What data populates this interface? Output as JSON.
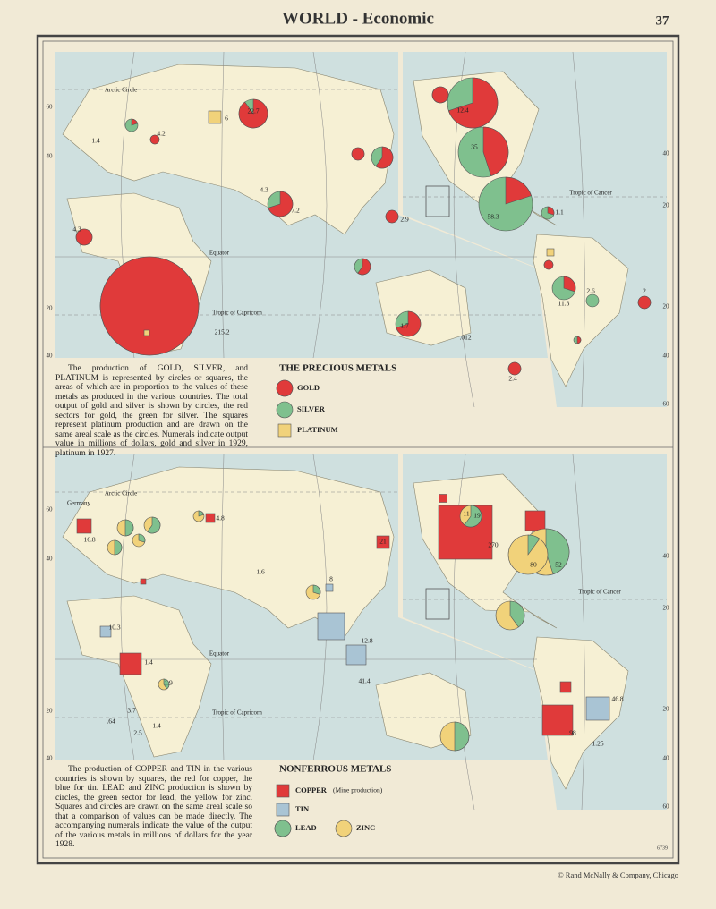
{
  "header": {
    "title": "WORLD - Economic",
    "page": "37"
  },
  "precious_metals": {
    "title": "THE PRECIOUS METALS",
    "description": "The production of GOLD, SILVER, and PLATINUM is represented by circles or squares, the areas of which are in proportion to the values of these metals as produced in the various countries. The total output of gold and silver is shown by circles, the red sectors for gold, the green for silver. The squares represent platinum production and are drawn on the same areal scale as the circles. Numerals indicate output value in millions of dollars, gold and silver in 1929, platinum in 1927.",
    "legend": [
      "GOLD",
      "SILVER",
      "PLATINUM"
    ],
    "map_labels": [
      "Arctic Circle",
      "Equator",
      "Tropic of Capricorn",
      "Tropic of Cancer",
      "22.7",
      "215.2",
      "4.3",
      "7.2",
      "4.3",
      "1.4",
      "4.2",
      "6",
      "2.9",
      "12.4",
      "35",
      "58.3",
      "1.1",
      "2.6",
      "11.3",
      "2",
      "2.4",
      ".012",
      "1.7"
    ],
    "grid_labels": [
      "60",
      "40",
      "20",
      "40",
      "40",
      "20",
      "20",
      "40",
      "60"
    ]
  },
  "nonferrous_metals": {
    "title": "NONFERROUS METALS",
    "description": "The production of COPPER and TIN in the various countries is shown by squares, the red for copper, the blue for tin. LEAD and ZINC production is shown by circles, the green sector for lead, the yellow for zinc. Squares and circles are drawn on the same areal scale so that a comparison of values can be made directly. The accompanying numerals indicate the value of the output of the various metals in millions of dollars for the year 1928.",
    "legend": [
      "COPPER",
      "TIN",
      "LEAD",
      "ZINC"
    ],
    "copper_note": "(Mine production)",
    "map_labels": [
      "Arctic Circle",
      "Germany",
      "Equator",
      "Tropic of Capricorn",
      "Tropic of Cancer",
      "16.8",
      "4.8",
      "1.6",
      "21",
      "8",
      "12.8",
      "41.4",
      "10.3",
      "1.4",
      "1.9",
      "3.7",
      ".64",
      "2.5",
      "1.4",
      "270",
      "80",
      "52",
      "11",
      "19",
      "46.8",
      "98",
      "1.25"
    ],
    "grid_labels": [
      "60",
      "40",
      "20",
      "40",
      "40",
      "20",
      "20",
      "40",
      "60"
    ]
  },
  "footer": {
    "code": "6739",
    "copyright": "© Rand McNally & Company, Chicago"
  }
}
